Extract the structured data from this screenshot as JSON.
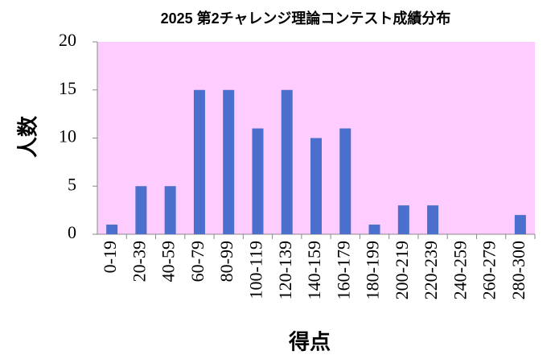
{
  "chart_data": {
    "type": "bar",
    "title": "2025 第2チャレンジ理論コンテスト成績分布",
    "x_label": "得点",
    "y_label": "人数",
    "categories": [
      "0-19",
      "20-39",
      "40-59",
      "60-79",
      "80-99",
      "100-119",
      "120-139",
      "140-159",
      "160-179",
      "180-199",
      "200-219",
      "220-239",
      "240-259",
      "260-279",
      "280-300"
    ],
    "values": [
      1,
      5,
      5,
      15,
      15,
      11,
      15,
      10,
      11,
      1,
      3,
      3,
      0,
      0,
      2
    ],
    "color": "#4a6fcc",
    "plot_background": "#ffccff",
    "ylim": [
      0,
      20
    ],
    "yticks": [
      0,
      5,
      10,
      15,
      20
    ],
    "grid": false
  }
}
